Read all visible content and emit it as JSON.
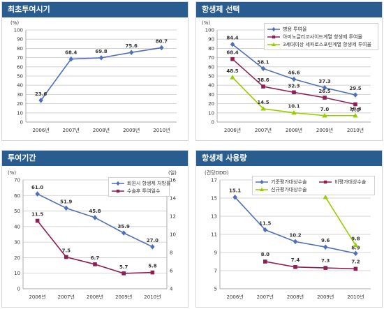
{
  "panels": {
    "first_time": {
      "title": "최초투여시기"
    },
    "selection": {
      "title": "항생제 선택"
    },
    "duration": {
      "title": "투여기간"
    },
    "usage": {
      "title": "항생제 사용량"
    }
  },
  "colors": {
    "header": "#2a5d8f",
    "blue": "#4f6fb8",
    "maroon": "#8e1f54",
    "green": "#99cc00",
    "grid": "#c9c9c9"
  },
  "chart_data": [
    {
      "id": "first_time",
      "type": "line",
      "title": "최초투여시기",
      "x": [
        "2006년",
        "2007년",
        "2008년",
        "2009년",
        "2010년"
      ],
      "ylabel": "(%)",
      "ylim": [
        0,
        100
      ],
      "yticks": [
        0,
        10,
        20,
        30,
        40,
        50,
        60,
        70,
        80,
        90,
        100
      ],
      "series": [
        {
          "values": [
            23.6,
            68.4,
            69.8,
            75.6,
            80.7
          ],
          "color": "#4f6fb8",
          "marker": "diamond",
          "labels": [
            "23.6",
            "68.4",
            "69.8",
            "75.6",
            "80.7"
          ]
        }
      ]
    },
    {
      "id": "selection",
      "type": "line",
      "title": "항생제 선택",
      "x": [
        "2006년",
        "2007년",
        "2008년",
        "2009년",
        "2010년"
      ],
      "ylabel": "(%)",
      "ylim": [
        0,
        100
      ],
      "yticks": [
        0,
        10,
        20,
        30,
        40,
        50,
        60,
        70,
        80,
        90,
        100
      ],
      "legend": "top-right",
      "series": [
        {
          "name": "병용 투여율",
          "values": [
            84.4,
            58.1,
            46.6,
            37.3,
            29.5
          ],
          "color": "#4f6fb8",
          "marker": "diamond",
          "labels": [
            "84.4",
            "58.1",
            "46.6",
            "37.3",
            "29.5"
          ]
        },
        {
          "name": "아미노글리코사이드계열 항생제 투여율",
          "values": [
            68.4,
            38.6,
            32.3,
            26.5,
            19.3
          ],
          "color": "#8e1f54",
          "marker": "square",
          "labels": [
            "68.4",
            "38.6",
            "32.3",
            "26.5",
            "19.3"
          ]
        },
        {
          "name": "3세대이상 세파로스포린계열 항생제 투여율",
          "values": [
            48.5,
            14.5,
            10.1,
            7.0,
            7.0
          ],
          "color": "#99cc00",
          "marker": "triangle",
          "labels": [
            "48.5",
            "14.5",
            "10.1",
            "7.0",
            "7.0"
          ]
        }
      ]
    },
    {
      "id": "duration",
      "type": "line",
      "title": "투여기간",
      "x": [
        "2006년",
        "2007년",
        "2008년",
        "2009년",
        "2010년"
      ],
      "ylabel": "(%)",
      "ylabel_right": "(일)",
      "ylim": [
        0,
        70
      ],
      "yticks": [
        0,
        10,
        20,
        30,
        40,
        50,
        60,
        70
      ],
      "ylim_right": [
        4,
        16
      ],
      "yticks_right": [
        4,
        6,
        8,
        10,
        12,
        14,
        16
      ],
      "legend": "top-right",
      "series": [
        {
          "name": "퇴원시 항생제 처방률",
          "axis": "left",
          "values": [
            61.0,
            51.9,
            45.8,
            35.9,
            27.0
          ],
          "color": "#4f6fb8",
          "marker": "diamond",
          "labels": [
            "61.0",
            "51.9",
            "45.8",
            "35.9",
            "27.0"
          ]
        },
        {
          "name": "수술후 투여일수",
          "axis": "right",
          "values": [
            11.5,
            7.5,
            6.7,
            5.7,
            5.8
          ],
          "color": "#8e1f54",
          "marker": "square",
          "labels": [
            "11.5",
            "7.5",
            "6.7",
            "5.7",
            "5.8"
          ]
        }
      ]
    },
    {
      "id": "usage",
      "type": "line",
      "title": "항생제 사용량",
      "x": [
        "2006년",
        "2007년",
        "2008년",
        "2009년",
        "2010년"
      ],
      "ylabel": "(건당DDD)",
      "ylim": [
        5,
        17
      ],
      "yticks": [
        5,
        7,
        9,
        11,
        13,
        15,
        17
      ],
      "legend": "top-right",
      "series": [
        {
          "name": "기준평가대상수술",
          "values": [
            15.1,
            11.5,
            10.2,
            9.6,
            8.9
          ],
          "color": "#4f6fb8",
          "marker": "diamond",
          "labels": [
            "15.1",
            "11.5",
            "10.2",
            "9.6",
            "8.9"
          ]
        },
        {
          "name": "비평가대상수술",
          "values": [
            null,
            8.0,
            7.4,
            7.3,
            7.2
          ],
          "color": "#8e1f54",
          "marker": "square",
          "labels": [
            "",
            "8.0",
            "7.4",
            "7.3",
            "7.2"
          ]
        },
        {
          "name": "신규평가대상수술",
          "values": [
            null,
            null,
            null,
            15.1,
            9.8
          ],
          "color": "#99cc00",
          "marker": "triangle",
          "labels": [
            "",
            "",
            "",
            "15.1",
            "9.8"
          ]
        }
      ]
    }
  ]
}
